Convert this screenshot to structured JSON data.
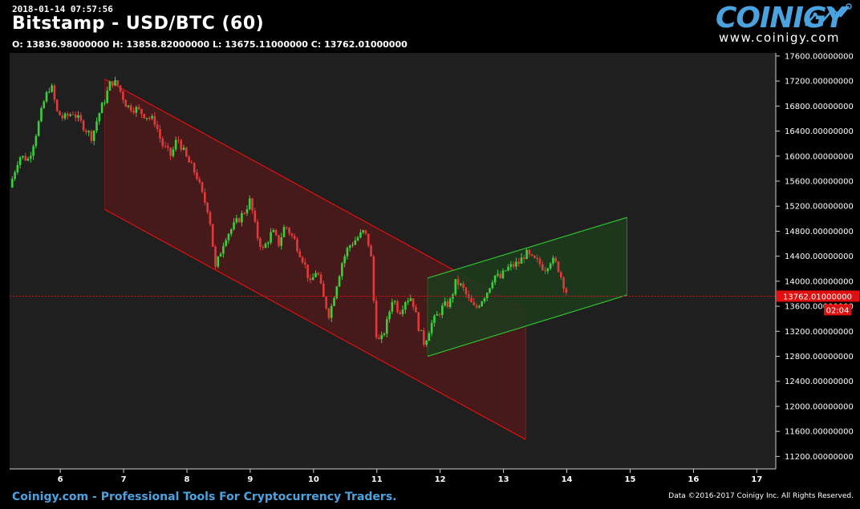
{
  "header": {
    "timestamp": "2018-01-14 07:57:56",
    "title": "Bitstamp - USD/BTC (60)",
    "ohlc": "O: 13836.98000000 H: 13858.82000000 L: 13675.11000000 C: 13762.01000000"
  },
  "logo": {
    "word": "COINIGY",
    "url": "www.coinigy.com",
    "icon": "sparkline-icon"
  },
  "footer": {
    "left": "Coinigy.com - Professional Tools For Cryptocurrency Traders.",
    "right": "Data ©2016-2017 Coinigy Inc. All Rights Reserved."
  },
  "colors": {
    "background": "#000000",
    "plot_background": "#1f1f1f",
    "up": "#3ccf3c",
    "down": "#e03a3a",
    "brand": "#4aa3df",
    "price_line": "#e01010",
    "red_channel_fill": "#4a1a1a",
    "green_channel_fill": "#1d3a1d"
  },
  "chart_data": {
    "type": "candlestick",
    "title": "Bitstamp - USD/BTC (60)",
    "xlabel": "",
    "ylabel": "",
    "x_ticks": [
      "6",
      "7",
      "8",
      "9",
      "10",
      "11",
      "12",
      "13",
      "14",
      "15",
      "16",
      "17"
    ],
    "y_ticks": [
      "11200.00000000",
      "11600.00000000",
      "12000.00000000",
      "12400.00000000",
      "12800.00000000",
      "13200.00000000",
      "13600.00000000",
      "14000.00000000",
      "14400.00000000",
      "14800.00000000",
      "15200.00000000",
      "15600.00000000",
      "16000.00000000",
      "16400.00000000",
      "16800.00000000",
      "17200.00000000",
      "17600.00000000"
    ],
    "xlim": [
      5.2,
      17.3
    ],
    "ylim": [
      11000,
      17650
    ],
    "grid": false,
    "current_price": 13762.01,
    "current_price_label": "13762.01000000",
    "countdown_label": "02:04",
    "price_path": [
      [
        5.2,
        15500
      ],
      [
        5.35,
        16000
      ],
      [
        5.5,
        15950
      ],
      [
        5.6,
        16300
      ],
      [
        5.75,
        16900
      ],
      [
        5.85,
        17150
      ],
      [
        5.95,
        16700
      ],
      [
        6.05,
        16600
      ],
      [
        6.2,
        16700
      ],
      [
        6.35,
        16500
      ],
      [
        6.5,
        16300
      ],
      [
        6.6,
        16650
      ],
      [
        6.7,
        16900
      ],
      [
        6.8,
        17200
      ],
      [
        6.9,
        17150
      ],
      [
        7.05,
        16800
      ],
      [
        7.2,
        16750
      ],
      [
        7.35,
        16650
      ],
      [
        7.5,
        16550
      ],
      [
        7.6,
        16200
      ],
      [
        7.75,
        16000
      ],
      [
        7.85,
        16300
      ],
      [
        8.0,
        15950
      ],
      [
        8.15,
        15700
      ],
      [
        8.25,
        15350
      ],
      [
        8.35,
        15100
      ],
      [
        8.45,
        14200
      ],
      [
        8.6,
        14700
      ],
      [
        8.75,
        14900
      ],
      [
        8.9,
        15100
      ],
      [
        9.0,
        15300
      ],
      [
        9.1,
        14750
      ],
      [
        9.2,
        14500
      ],
      [
        9.35,
        14800
      ],
      [
        9.45,
        14600
      ],
      [
        9.55,
        14900
      ],
      [
        9.7,
        14650
      ],
      [
        9.85,
        14300
      ],
      [
        9.95,
        13950
      ],
      [
        10.05,
        14200
      ],
      [
        10.15,
        13750
      ],
      [
        10.25,
        13450
      ],
      [
        10.35,
        13900
      ],
      [
        10.45,
        14300
      ],
      [
        10.55,
        14550
      ],
      [
        10.7,
        14700
      ],
      [
        10.8,
        14800
      ],
      [
        10.9,
        14500
      ],
      [
        10.98,
        13200
      ],
      [
        11.05,
        13000
      ],
      [
        11.15,
        13300
      ],
      [
        11.25,
        13750
      ],
      [
        11.35,
        13500
      ],
      [
        11.45,
        13700
      ],
      [
        11.55,
        13750
      ],
      [
        11.65,
        13300
      ],
      [
        11.75,
        13000
      ],
      [
        11.85,
        13300
      ],
      [
        11.95,
        13450
      ],
      [
        12.05,
        13600
      ],
      [
        12.15,
        13650
      ],
      [
        12.25,
        14000
      ],
      [
        12.35,
        13900
      ],
      [
        12.45,
        13700
      ],
      [
        12.55,
        13550
      ],
      [
        12.65,
        13700
      ],
      [
        12.75,
        13850
      ],
      [
        12.85,
        14100
      ],
      [
        12.95,
        14050
      ],
      [
        13.05,
        14200
      ],
      [
        13.15,
        14250
      ],
      [
        13.25,
        14300
      ],
      [
        13.35,
        14450
      ],
      [
        13.45,
        14350
      ],
      [
        13.55,
        14300
      ],
      [
        13.65,
        14200
      ],
      [
        13.75,
        14350
      ],
      [
        13.85,
        14250
      ],
      [
        13.95,
        13950
      ],
      [
        14.02,
        13762
      ]
    ],
    "channels": [
      {
        "color": "#e01010",
        "fill": "#4a1a1a",
        "upper": [
          [
            6.7,
            17230
          ],
          [
            13.35,
            13550
          ]
        ],
        "lower": [
          [
            6.7,
            15150
          ],
          [
            13.35,
            11470
          ]
        ]
      },
      {
        "color": "#30c030",
        "fill": "#1d3a1d",
        "upper": [
          [
            11.8,
            14050
          ],
          [
            14.95,
            15020
          ]
        ],
        "lower": [
          [
            11.8,
            12800
          ],
          [
            14.95,
            13780
          ]
        ]
      }
    ]
  }
}
